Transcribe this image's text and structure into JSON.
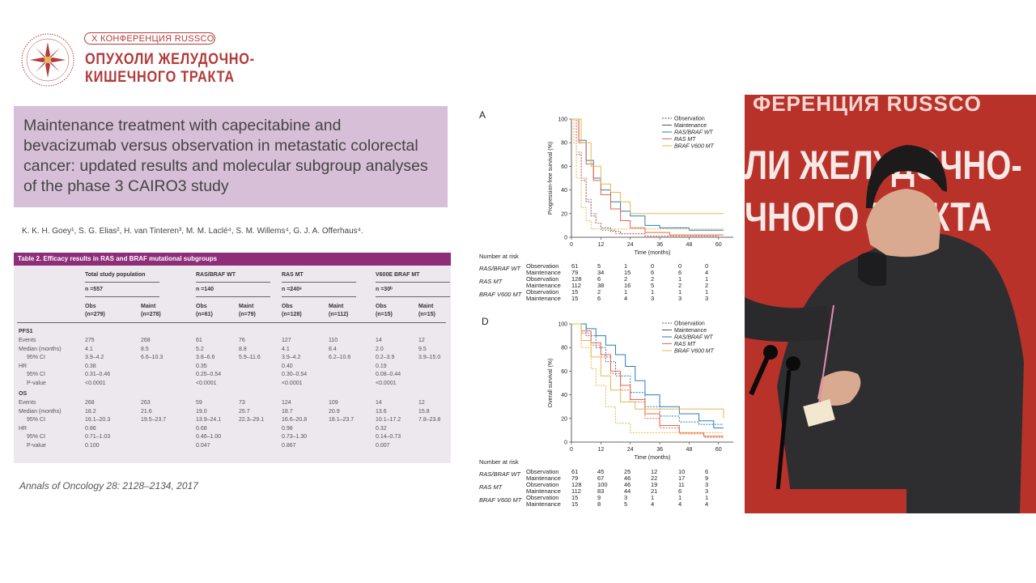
{
  "conference": {
    "pill": "X КОНФЕРЕНЦИЯ RUSSCO",
    "title_line1": "ОПУХОЛИ ЖЕЛУДОЧНО-",
    "title_line2": "КИШЕЧНОГО ТРАКТА",
    "logo_text": "RUSSCO"
  },
  "slide": {
    "title": "Maintenance treatment with capecitabine and bevacizumab versus observation in metastatic colorectal cancer: updated results and molecular subgroup analyses of the phase 3 CAIRO3 study",
    "authors": "K. K. H. Goey¹, S. G. Elias², H. van Tinteren³, M. M. Laclé⁴, S. M. Willems⁴, G. J. A. Offerhaus⁴.",
    "citation": "Annals of Oncology 28: 2128–2134, 2017",
    "table": {
      "caption": "Table 2. Efficacy results in RAS and BRAF mutational subgroups",
      "groups": [
        {
          "name": "Total study population",
          "n": "n =557",
          "obs_label": "Obs",
          "obs_n": "(n=279)",
          "maint_label": "Maint",
          "maint_n": "(n=278)"
        },
        {
          "name": "RAS/BRAF WT",
          "n": "n =140",
          "obs_label": "Obs",
          "obs_n": "(n=61)",
          "maint_label": "Maint",
          "maint_n": "(n=79)"
        },
        {
          "name": "RAS MT",
          "n": "n =240ᵃ",
          "obs_label": "Obs",
          "obs_n": "(n=128)",
          "maint_label": "Maint",
          "maint_n": "(n=112)"
        },
        {
          "name": "V600E BRAF MT",
          "n": "n =30ᵇ",
          "obs_label": "Obs",
          "obs_n": "(n=15)",
          "maint_label": "Maint",
          "maint_n": "(n=15)"
        }
      ],
      "sections": [
        {
          "title": "PFS1",
          "rows": [
            {
              "label": "Events",
              "vals": [
                "275",
                "268",
                "61",
                "76",
                "127",
                "110",
                "14",
                "12"
              ]
            },
            {
              "label": "Median (months)",
              "vals": [
                "4.1",
                "8.5",
                "5.2",
                "8.8",
                "4.1",
                "8.4",
                "2.0",
                "9.5"
              ]
            },
            {
              "label": "95% CI",
              "vals": [
                "3.9–4.2",
                "6.6–10.3",
                "3.8–6.6",
                "5.9–11.6",
                "3.9–4.2",
                "6.2–10.6",
                "0.2–3.9",
                "3.9–15.0"
              ]
            },
            {
              "label": "HR",
              "vals": [
                "0.38",
                "",
                "0.35",
                "",
                "0.40",
                "",
                "0.19",
                ""
              ]
            },
            {
              "label": "95% CI",
              "vals": [
                "0.31–0.46",
                "",
                "0.25–0.54",
                "",
                "0.30–0.54",
                "",
                "0.08–0.44",
                ""
              ]
            },
            {
              "label": "P-value",
              "vals": [
                "<0.0001",
                "",
                "<0.0001",
                "",
                "<0.0001",
                "",
                "<0.0001",
                ""
              ]
            }
          ]
        },
        {
          "title": "OS",
          "rows": [
            {
              "label": "Events",
              "vals": [
                "268",
                "263",
                "59",
                "73",
                "124",
                "109",
                "14",
                "12"
              ]
            },
            {
              "label": "Median (months)",
              "vals": [
                "18.2",
                "21.6",
                "19.0",
                "25.7",
                "18.7",
                "20.9",
                "13.6",
                "15.8"
              ]
            },
            {
              "label": "95% CI",
              "vals": [
                "16.1–20.3",
                "19.5–23.7",
                "13.9–24.1",
                "22.3–29.1",
                "16.6–20.8",
                "18.1–23.7",
                "10.1–17.2",
                "7.8–23.8"
              ]
            },
            {
              "label": "HR",
              "vals": [
                "0.86",
                "",
                "0.68",
                "",
                "0.98",
                "",
                "0.32",
                ""
              ]
            },
            {
              "label": "95% CI",
              "vals": [
                "0.71–1.03",
                "",
                "0.46–1.00",
                "",
                "0.73–1.30",
                "",
                "0.14–0.73",
                ""
              ]
            },
            {
              "label": "P-value",
              "vals": [
                "0.100",
                "",
                "0.047",
                "",
                "0.867",
                "",
                "0.007",
                ""
              ]
            }
          ]
        }
      ]
    }
  },
  "charts": {
    "panel_a": {
      "letter": "A",
      "ylabel": "Progression-free survival (%)",
      "xlabel": "Time (months)",
      "yticks": [
        "0",
        "20",
        "40",
        "60",
        "80",
        "100"
      ],
      "xticks": [
        "0",
        "12",
        "24",
        "36",
        "48",
        "60"
      ],
      "legend": [
        "Observation",
        "Maintenance",
        "RAS/BRAF WT",
        "RAS MT",
        "BRAF V600 MT"
      ],
      "risk_title": "Number at risk",
      "risk": [
        {
          "group": "RAS/BRAF WT",
          "arm": "Observation",
          "vals": [
            "61",
            "5",
            "1",
            "0",
            "0",
            "0"
          ]
        },
        {
          "group": "",
          "arm": "Maintenance",
          "vals": [
            "79",
            "34",
            "15",
            "6",
            "6",
            "4"
          ]
        },
        {
          "group": "RAS MT",
          "arm": "Observation",
          "vals": [
            "128",
            "6",
            "2",
            "2",
            "1",
            "1"
          ]
        },
        {
          "group": "",
          "arm": "Maintenance",
          "vals": [
            "112",
            "38",
            "16",
            "5",
            "2",
            "2"
          ]
        },
        {
          "group": "BRAF V600 MT",
          "arm": "Observation",
          "vals": [
            "15",
            "2",
            "1",
            "1",
            "1",
            "1"
          ]
        },
        {
          "group": "",
          "arm": "Maintenance",
          "vals": [
            "15",
            "6",
            "4",
            "3",
            "3",
            "3"
          ]
        }
      ]
    },
    "panel_d": {
      "letter": "D",
      "ylabel": "Overall survival (%)",
      "xlabel": "Time (months)",
      "yticks": [
        "0",
        "20",
        "40",
        "60",
        "80",
        "100"
      ],
      "xticks": [
        "0",
        "12",
        "24",
        "36",
        "48",
        "60"
      ],
      "legend": [
        "Observation",
        "Maintenance",
        "RAS/BRAF WT",
        "RAS MT",
        "BRAF V600 MT"
      ],
      "risk_title": "Number at risk",
      "risk": [
        {
          "group": "RAS/BRAF WT",
          "arm": "Observation",
          "vals": [
            "61",
            "45",
            "25",
            "12",
            "10",
            "6"
          ]
        },
        {
          "group": "",
          "arm": "Maintenance",
          "vals": [
            "79",
            "67",
            "46",
            "22",
            "17",
            "9"
          ]
        },
        {
          "group": "RAS MT",
          "arm": "Observation",
          "vals": [
            "128",
            "100",
            "46",
            "19",
            "11",
            "3"
          ]
        },
        {
          "group": "",
          "arm": "Maintenance",
          "vals": [
            "112",
            "83",
            "44",
            "21",
            "6",
            "3"
          ]
        },
        {
          "group": "BRAF V600 MT",
          "arm": "Observation",
          "vals": [
            "15",
            "9",
            "3",
            "1",
            "1",
            "1"
          ]
        },
        {
          "group": "",
          "arm": "Maintenance",
          "vals": [
            "15",
            "8",
            "5",
            "4",
            "4",
            "4"
          ]
        }
      ]
    }
  },
  "video": {
    "backdrop_line1": "ФЕРЕНЦИЯ RUSSCO",
    "backdrop_line2": "ЛИ ЖЕЛУДОЧНО-",
    "backdrop_line3": "ЧНОГО ТРАКТА",
    "backdrop_url": "ru"
  },
  "colors": {
    "brand_red": "#b33a3a",
    "title_box": "#d8bfd8",
    "table_header": "#8e2e7a",
    "wt": "#2b7bb9",
    "ras": "#e8674a",
    "braf": "#e6b84c",
    "backdrop": "#c0392b"
  }
}
